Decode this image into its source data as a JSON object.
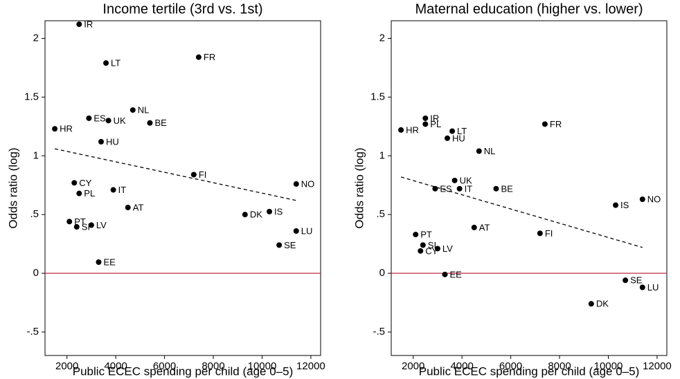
{
  "chart_data": [
    {
      "type": "scatter",
      "title": "Income tertile (3rd vs. 1st)",
      "x_label": "Public ECEC spending per child (age 0–5)",
      "y_label": "Odds ratio (log)",
      "point_color": "#000000",
      "fit_color": "#000000",
      "reference_color": "#c0284a",
      "labels": [
        "IR",
        "LT",
        "FR",
        "NL",
        "ES",
        "UK",
        "BE",
        "HR",
        "HU",
        "FI",
        "CY",
        "NO",
        "IT",
        "PL",
        "AT",
        "IS",
        "DK",
        "PT",
        "SI",
        "LV",
        "LU",
        "SE",
        "EE"
      ],
      "x": [
        2500,
        3600,
        7400,
        4700,
        2900,
        3700,
        5400,
        1500,
        3400,
        7200,
        2300,
        11400,
        3900,
        2500,
        4500,
        10300,
        9300,
        2100,
        2400,
        3000,
        11400,
        10700,
        3300
      ],
      "y": [
        2.12,
        1.79,
        1.84,
        1.39,
        1.32,
        1.3,
        1.28,
        1.23,
        1.12,
        0.84,
        0.77,
        0.76,
        0.71,
        0.68,
        0.56,
        0.525,
        0.5,
        0.44,
        0.395,
        0.41,
        0.36,
        0.24,
        0.095
      ],
      "fit": {
        "x": [
          1500,
          11400
        ],
        "y": [
          1.06,
          0.62
        ]
      },
      "reference_line": 0,
      "xlim": [
        1100,
        12400
      ],
      "ylim": [
        -0.7,
        2.15
      ],
      "xticks": [
        2000,
        4000,
        6000,
        8000,
        10000,
        12000
      ],
      "yticks": [
        {
          "value": -0.5,
          "label": "-.5"
        },
        0,
        {
          "value": 0.5,
          "label": ".5"
        },
        1,
        1.5,
        2
      ]
    },
    {
      "type": "scatter",
      "title": "Maternal education (higher vs. lower)",
      "x_label": "Public ECEC spending per child (age 0–5)",
      "y_label": "Odds ratio (log)",
      "point_color": "#000000",
      "fit_color": "#000000",
      "reference_color": "#c0284a",
      "labels": [
        "IR",
        "PL",
        "HR",
        "LT",
        "FR",
        "HU",
        "NL",
        "UK",
        "ES",
        "IT",
        "BE",
        "NO",
        "IS",
        "AT",
        "FI",
        "PT",
        "SI",
        "LV",
        "CY",
        "EE",
        "SE",
        "LU",
        "DK"
      ],
      "x": [
        2500,
        2500,
        1500,
        3600,
        7400,
        3400,
        4700,
        3700,
        2900,
        3900,
        5400,
        11400,
        10300,
        4500,
        7200,
        2100,
        2400,
        3000,
        2300,
        3300,
        10700,
        11400,
        9300
      ],
      "y": [
        1.32,
        1.27,
        1.22,
        1.21,
        1.27,
        1.15,
        1.04,
        0.79,
        0.72,
        0.72,
        0.72,
        0.63,
        0.58,
        0.39,
        0.34,
        0.33,
        0.24,
        0.21,
        0.19,
        -0.01,
        -0.06,
        -0.12,
        -0.26
      ],
      "fit": {
        "x": [
          1500,
          11400
        ],
        "y": [
          0.82,
          0.22
        ]
      },
      "reference_line": 0,
      "xlim": [
        1100,
        12400
      ],
      "ylim": [
        -0.7,
        2.15
      ],
      "xticks": [
        2000,
        4000,
        6000,
        8000,
        10000,
        12000
      ],
      "yticks": [
        {
          "value": -0.5,
          "label": "-.5"
        },
        0,
        {
          "value": 0.5,
          "label": ".5"
        },
        1,
        1.5,
        2
      ]
    }
  ]
}
